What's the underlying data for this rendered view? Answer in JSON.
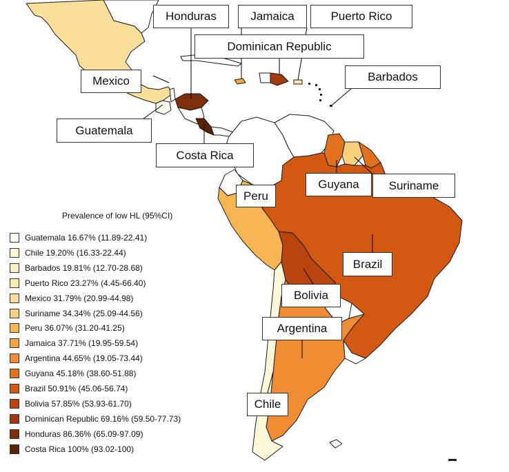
{
  "legend": {
    "title": "Prevalence of low HL (95%CI)",
    "items": [
      {
        "label": "Guatemala 16.67% (11.89-22.41)",
        "color": "#fdfdf0"
      },
      {
        "label": "Chile 19.20% (16.33-22.44)",
        "color": "#fcf7d6"
      },
      {
        "label": "Barbados 19.81% (12.70-28.68)",
        "color": "#fbefc4"
      },
      {
        "label": "Puerto Rico 23.27% (4.45-66.40)",
        "color": "#fbe8ad"
      },
      {
        "label": "Mexico 31.79% (20.99-44.98)",
        "color": "#fadf9a"
      },
      {
        "label": "Suriname 34.34% (25.09-44.56)",
        "color": "#f9d07c"
      },
      {
        "label": "Peru 36.07% (31.20-41.25)",
        "color": "#f7b553"
      },
      {
        "label": "Jamaica 37.71% (19.95-59.54)",
        "color": "#f5a546"
      },
      {
        "label": "Argentina 44.65% (19.05-73.44)",
        "color": "#f08d34"
      },
      {
        "label": "Guyana 45.18% (38.60-51.88)",
        "color": "#e2711f"
      },
      {
        "label": "Brazil 50.91% (45.06-56.74)",
        "color": "#d35812"
      },
      {
        "label": "Bolivia 57.85% (53.93-61.70)",
        "color": "#b9440d"
      },
      {
        "label": "Dominican Republic 69.16% (59.50-77.73)",
        "color": "#a03b0d"
      },
      {
        "label": "Honduras 86.36% (65.09-97.09)",
        "color": "#7d2e0b"
      },
      {
        "label": "Costa Rica 100% (93.02-100)",
        "color": "#5a2207"
      }
    ]
  },
  "labels": {
    "honduras": "Honduras",
    "jamaica": "Jamaica",
    "puerto_rico": "Puerto Rico",
    "dominican_republic": "Dominican Republic",
    "barbados": "Barbados",
    "mexico": "Mexico",
    "guatemala": "Guatemala",
    "costa_rica": "Costa Rica",
    "guyana": "Guyana",
    "suriname": "Suriname",
    "peru": "Peru",
    "brazil": "Brazil",
    "bolivia": "Bolivia",
    "argentina": "Argentina",
    "chile": "Chile"
  },
  "colors": {
    "no_data": "#ffffff",
    "border": "#1a1a1a"
  }
}
